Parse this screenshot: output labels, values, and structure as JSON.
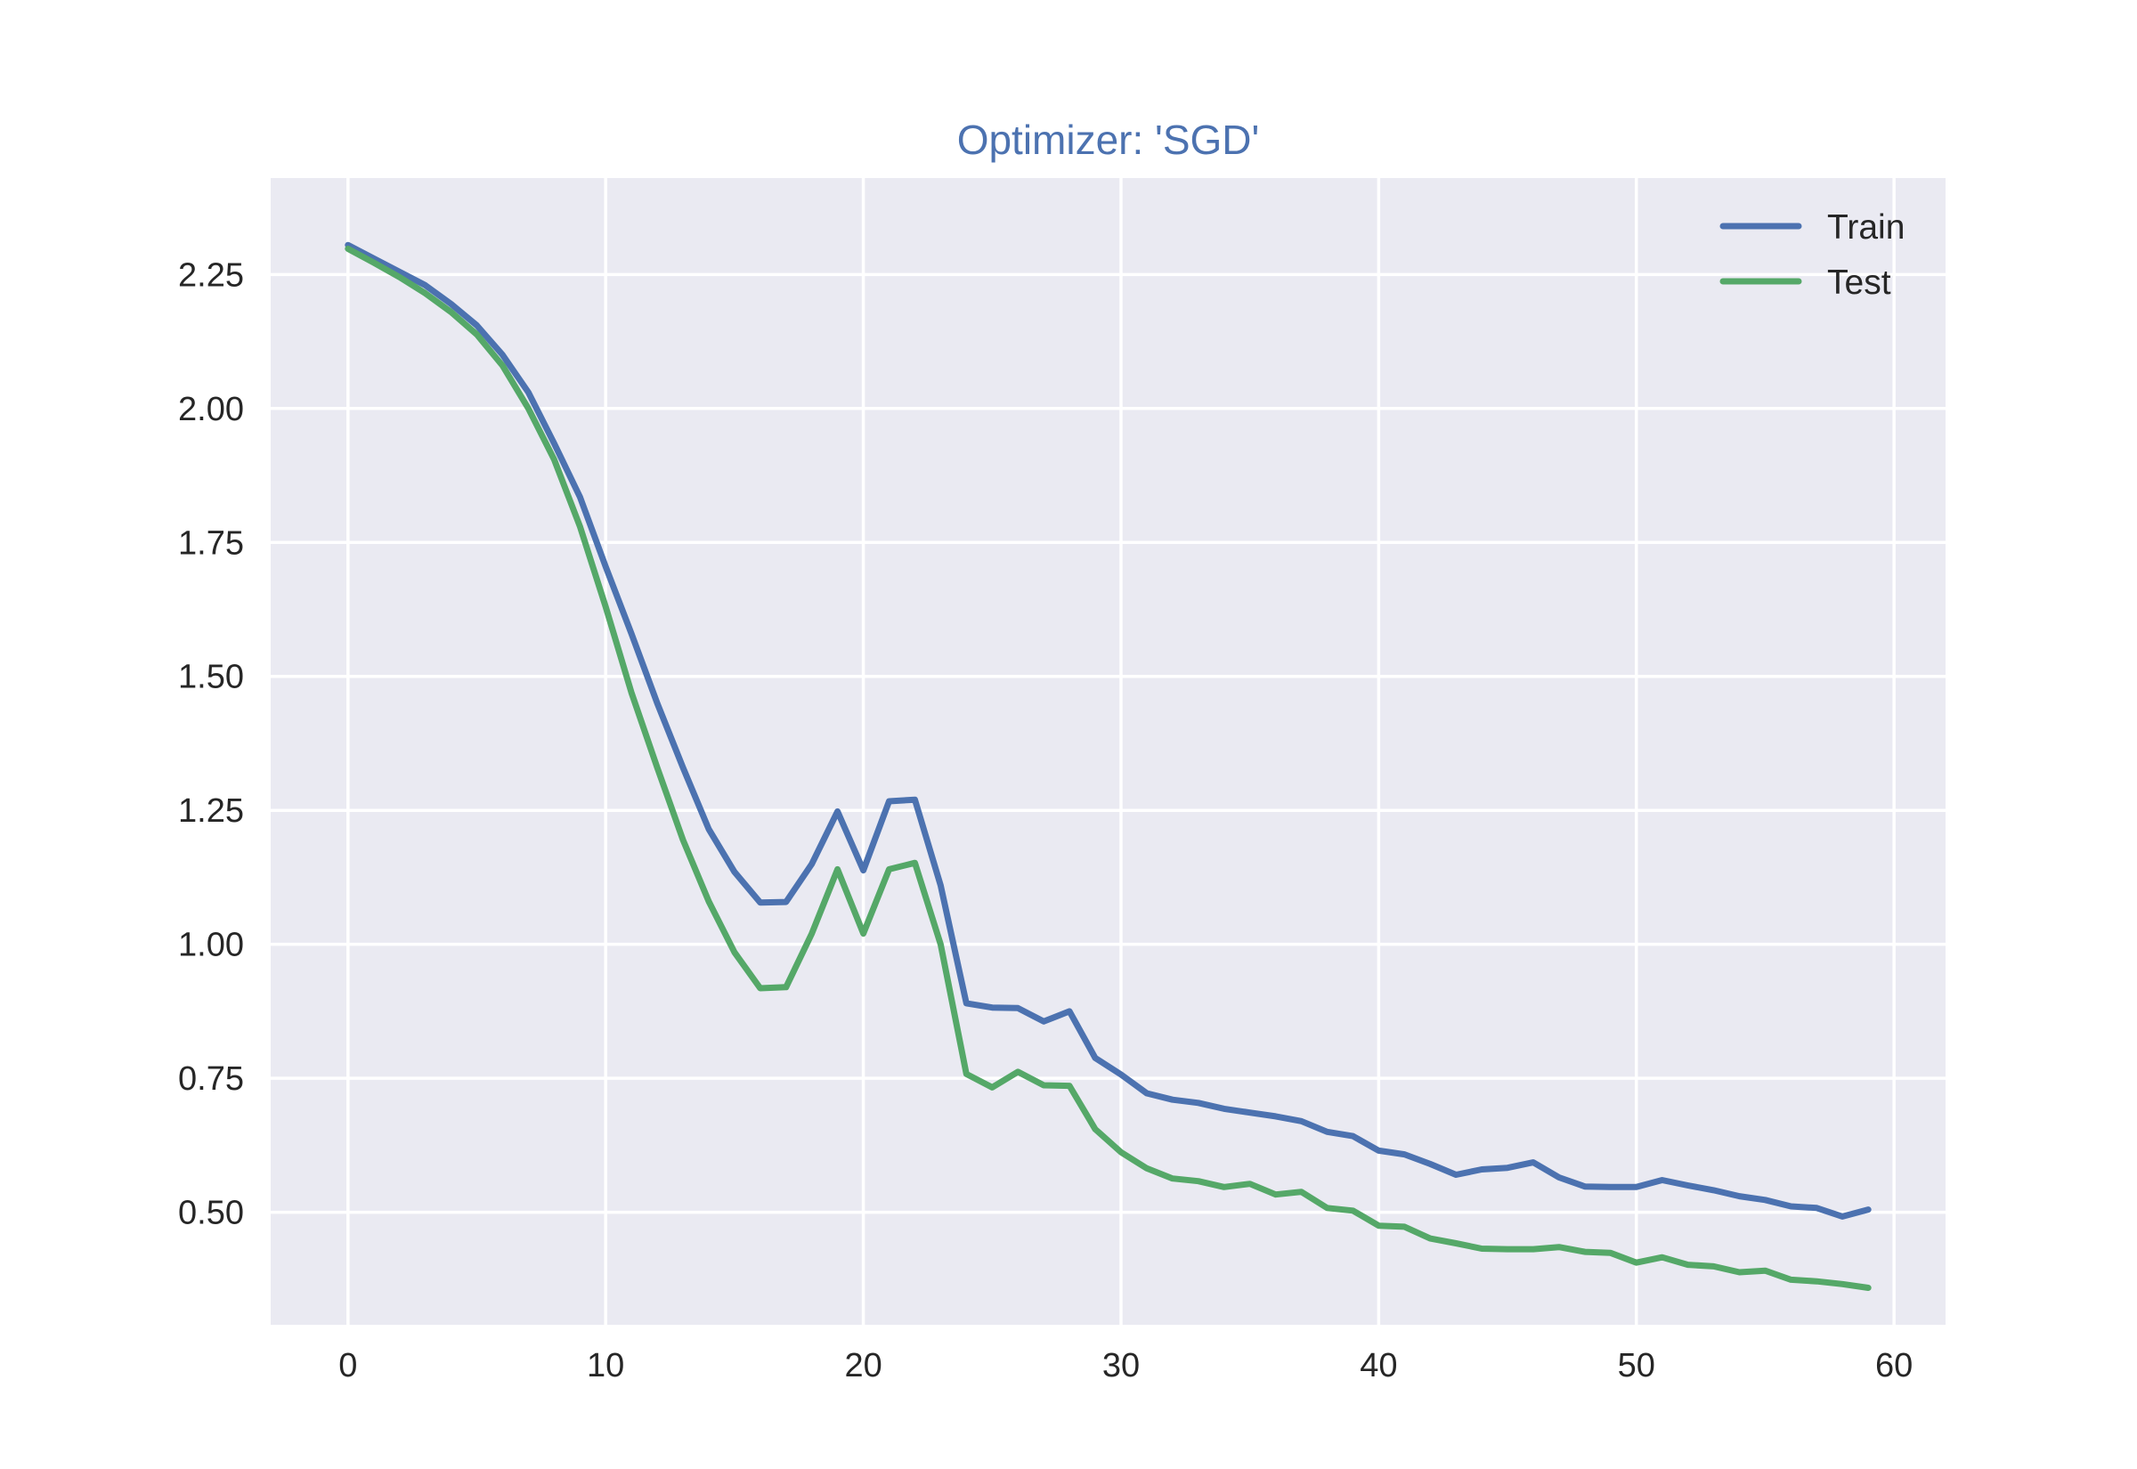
{
  "chart_data": {
    "type": "line",
    "title": "Optimizer: 'SGD'",
    "xlabel": "",
    "ylabel": "",
    "xlim": [
      -3,
      62
    ],
    "ylim": [
      0.29,
      2.43
    ],
    "xticks": [
      0,
      10,
      20,
      30,
      40,
      50,
      60
    ],
    "xtick_labels": [
      "0",
      "10",
      "20",
      "30",
      "40",
      "50",
      "60"
    ],
    "yticks": [
      0.5,
      0.75,
      1.0,
      1.25,
      1.5,
      1.75,
      2.0,
      2.25
    ],
    "ytick_labels": [
      "0.50",
      "0.75",
      "1.00",
      "1.25",
      "1.50",
      "1.75",
      "2.00",
      "2.25"
    ],
    "grid": true,
    "legend_position": "top-right",
    "x": [
      0,
      1,
      2,
      3,
      4,
      5,
      6,
      7,
      8,
      9,
      10,
      11,
      12,
      13,
      14,
      15,
      16,
      17,
      18,
      19,
      20,
      21,
      22,
      23,
      24,
      25,
      26,
      27,
      28,
      29,
      30,
      31,
      32,
      33,
      34,
      35,
      36,
      37,
      38,
      39,
      40,
      41,
      42,
      43,
      44,
      45,
      46,
      47,
      48,
      49,
      50,
      51,
      52,
      53,
      54,
      55,
      56,
      57,
      58,
      59
    ],
    "series": [
      {
        "name": "Train",
        "color": "#4c72b0",
        "values": [
          2.305,
          2.28,
          2.255,
          2.23,
          2.195,
          2.155,
          2.1,
          2.03,
          1.935,
          1.835,
          1.705,
          1.58,
          1.45,
          1.33,
          1.215,
          1.135,
          1.078,
          1.079,
          1.15,
          1.248,
          1.138,
          1.267,
          1.27,
          1.11,
          0.89,
          0.882,
          0.881,
          0.856,
          0.875,
          0.788,
          0.757,
          0.722,
          0.71,
          0.704,
          0.693,
          0.686,
          0.679,
          0.67,
          0.65,
          0.642,
          0.615,
          0.608,
          0.59,
          0.57,
          0.58,
          0.583,
          0.593,
          0.565,
          0.548,
          0.547,
          0.547,
          0.56,
          0.55,
          0.541,
          0.53,
          0.523,
          0.511,
          0.508,
          0.492,
          0.505
        ]
      },
      {
        "name": "Test",
        "color": "#55a868",
        "values": [
          2.298,
          2.272,
          2.245,
          2.215,
          2.18,
          2.138,
          2.08,
          2.0,
          1.905,
          1.78,
          1.63,
          1.47,
          1.33,
          1.195,
          1.08,
          0.985,
          0.918,
          0.92,
          1.02,
          1.14,
          1.02,
          1.14,
          1.152,
          1.0,
          0.758,
          0.733,
          0.762,
          0.737,
          0.736,
          0.655,
          0.612,
          0.582,
          0.563,
          0.558,
          0.547,
          0.553,
          0.533,
          0.538,
          0.508,
          0.503,
          0.475,
          0.473,
          0.451,
          0.442,
          0.432,
          0.431,
          0.431,
          0.435,
          0.426,
          0.424,
          0.406,
          0.416,
          0.402,
          0.399,
          0.388,
          0.391,
          0.374,
          0.371,
          0.366,
          0.359
        ]
      }
    ]
  }
}
